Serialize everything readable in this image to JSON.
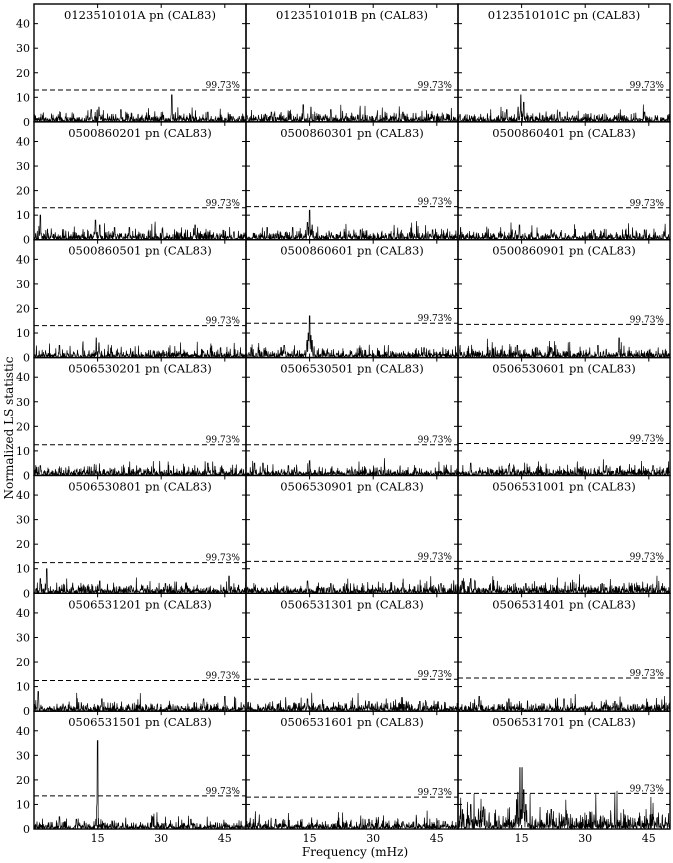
{
  "figure": {
    "xlabel": "Frequency (mHz)",
    "ylabel": "Normalized LS statistic"
  },
  "chart_data": {
    "type": "line",
    "layout": {
      "rows": 7,
      "cols": 3
    },
    "xlim": [
      0,
      50
    ],
    "ylim": [
      0,
      48
    ],
    "xticks": [
      15,
      30,
      45
    ],
    "yticks": [
      0,
      10,
      20,
      30,
      40
    ],
    "threshold_label": "99.73%",
    "panels": [
      {
        "title": "0123510101A pn (CAL83)",
        "threshold": 13.0,
        "noise": 2.5,
        "peaks": [
          [
            32.5,
            11
          ],
          [
            15.3,
            6
          ],
          [
            20.5,
            5
          ],
          [
            13.5,
            5
          ],
          [
            41,
            4
          ]
        ]
      },
      {
        "title": "0123510101B pn (CAL83)",
        "threshold": 13.0,
        "noise": 2.5,
        "peaks": [
          [
            13.5,
            7
          ],
          [
            15.3,
            6
          ],
          [
            20,
            5
          ],
          [
            37,
            4
          ],
          [
            6,
            4
          ]
        ]
      },
      {
        "title": "0123510101C pn (CAL83)",
        "threshold": 13.0,
        "noise": 2.5,
        "peaks": [
          [
            14.8,
            11
          ],
          [
            15.5,
            8
          ],
          [
            14.2,
            6
          ],
          [
            11.5,
            5
          ],
          [
            24,
            4
          ],
          [
            44,
            4
          ]
        ]
      },
      {
        "title": "0500860201 pn (CAL83)",
        "threshold": 13.0,
        "noise": 2.5,
        "peaks": [
          [
            1.5,
            10
          ],
          [
            14.5,
            8
          ],
          [
            15.5,
            6
          ],
          [
            19,
            5
          ],
          [
            22.5,
            5
          ],
          [
            38,
            6
          ]
        ]
      },
      {
        "title": "0500860301 pn (CAL83)",
        "threshold": 13.5,
        "noise": 2.5,
        "peaks": [
          [
            15,
            12
          ],
          [
            14.5,
            7
          ],
          [
            15.6,
            6
          ],
          [
            11,
            5
          ],
          [
            5,
            5
          ],
          [
            27,
            4
          ],
          [
            44,
            4
          ]
        ]
      },
      {
        "title": "0500860401 pn (CAL83)",
        "threshold": 13.0,
        "noise": 2.5,
        "peaks": [
          [
            14.5,
            6
          ],
          [
            0.6,
            5
          ],
          [
            22,
            4
          ],
          [
            32,
            4
          ],
          [
            44,
            4
          ]
        ]
      },
      {
        "title": "0500860501 pn (CAL83)",
        "threshold": 13.0,
        "noise": 2.2,
        "peaks": [
          [
            14.7,
            8
          ],
          [
            15.3,
            6
          ],
          [
            6,
            5
          ],
          [
            44,
            4
          ]
        ]
      },
      {
        "title": "0500860601 pn (CAL83)",
        "threshold": 14.0,
        "noise": 2.6,
        "peaks": [
          [
            15,
            17
          ],
          [
            14.7,
            10
          ],
          [
            15.3,
            9
          ],
          [
            14.4,
            7
          ],
          [
            15.6,
            7
          ],
          [
            9,
            5
          ],
          [
            42,
            4
          ]
        ]
      },
      {
        "title": "0500860901 pn (CAL83)",
        "threshold": 13.5,
        "noise": 2.5,
        "peaks": [
          [
            14,
            5
          ],
          [
            38,
            8
          ],
          [
            33,
            5
          ],
          [
            22,
            4
          ]
        ]
      },
      {
        "title": "0506530201 pn (CAL83)",
        "threshold": 12.5,
        "noise": 2.2,
        "peaks": [
          [
            1.5,
            4
          ],
          [
            41,
            5
          ],
          [
            25,
            3
          ]
        ]
      },
      {
        "title": "0506530501 pn (CAL83)",
        "threshold": 12.5,
        "noise": 2.3,
        "peaks": [
          [
            15,
            6
          ],
          [
            2,
            5
          ],
          [
            4,
            5
          ],
          [
            10,
            4
          ],
          [
            40,
            3
          ]
        ]
      },
      {
        "title": "0506530601 pn (CAL83)",
        "threshold": 13.0,
        "noise": 2.4,
        "peaks": [
          [
            3,
            5
          ],
          [
            12,
            4
          ],
          [
            35,
            4
          ],
          [
            46,
            4
          ]
        ]
      },
      {
        "title": "0506530801 pn (CAL83)",
        "threshold": 12.5,
        "noise": 2.3,
        "peaks": [
          [
            3,
            10
          ],
          [
            1.5,
            6
          ],
          [
            15.5,
            5
          ],
          [
            46,
            7
          ],
          [
            31,
            4
          ]
        ]
      },
      {
        "title": "0506530901 pn (CAL83)",
        "threshold": 13.0,
        "noise": 2.5,
        "peaks": [
          [
            14.5,
            5
          ],
          [
            20,
            4
          ],
          [
            37,
            4
          ],
          [
            46,
            4
          ]
        ]
      },
      {
        "title": "0506531001 pn (CAL83)",
        "threshold": 13.0,
        "noise": 2.8,
        "peaks": [
          [
            3,
            6
          ],
          [
            4,
            5
          ],
          [
            1,
            5
          ],
          [
            16,
            4
          ],
          [
            34,
            4
          ]
        ]
      },
      {
        "title": "0506531201 pn (CAL83)",
        "threshold": 12.5,
        "noise": 2.4,
        "peaks": [
          [
            1,
            8
          ],
          [
            16,
            5
          ],
          [
            40,
            5
          ],
          [
            45,
            6
          ]
        ]
      },
      {
        "title": "0506531301 pn (CAL83)",
        "threshold": 13.0,
        "noise": 2.5,
        "peaks": [
          [
            14.5,
            5
          ],
          [
            29,
            4
          ],
          [
            41,
            4
          ]
        ]
      },
      {
        "title": "0506531401 pn (CAL83)",
        "threshold": 13.5,
        "noise": 2.5,
        "peaks": [
          [
            5,
            6
          ],
          [
            12,
            5
          ],
          [
            25,
            5
          ],
          [
            37,
            4
          ]
        ]
      },
      {
        "title": "0506531501 pn (CAL83)",
        "threshold": 13.5,
        "noise": 2.3,
        "peaks": [
          [
            15,
            36
          ],
          [
            14.6,
            4
          ],
          [
            10,
            4
          ],
          [
            6,
            5
          ],
          [
            28,
            5
          ],
          [
            37,
            4
          ]
        ]
      },
      {
        "title": "0506531601 pn (CAL83)",
        "threshold": 13.0,
        "noise": 2.5,
        "peaks": [
          [
            7,
            4
          ],
          [
            29,
            4
          ],
          [
            37,
            3
          ],
          [
            47,
            3
          ]
        ]
      },
      {
        "title": "0506531701 pn (CAL83)",
        "threshold": 14.5,
        "noise": 5.0,
        "peaks": [
          [
            14.6,
            25
          ],
          [
            15.1,
            25
          ],
          [
            14.1,
            15
          ],
          [
            15.5,
            16
          ],
          [
            13.8,
            12
          ],
          [
            16,
            10
          ],
          [
            3,
            10
          ],
          [
            6,
            9
          ],
          [
            22,
            8
          ]
        ]
      }
    ]
  }
}
